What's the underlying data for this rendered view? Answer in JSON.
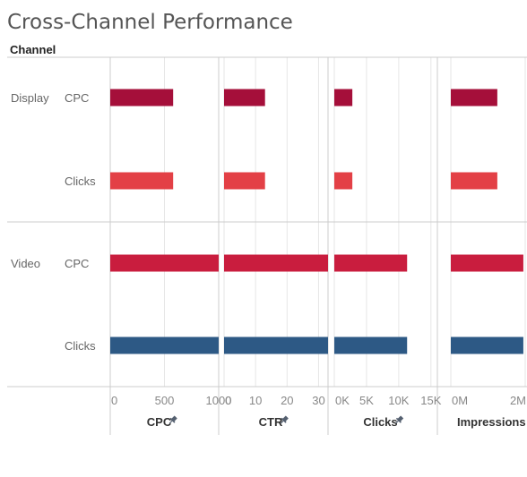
{
  "title": "Cross-Channel Performance",
  "row_header": "Channel",
  "colors": {
    "Display|CPC": "#a50f3a",
    "Display|Clicks": "#e34046",
    "Video|CPC": "#c91d3e",
    "Video|Clicks": "#2d5985",
    "grid": "#e6e6e6",
    "divider": "#cccccc"
  },
  "chart_data": {
    "type": "bar",
    "orientation": "horizontal",
    "title": "Cross-Channel Performance",
    "rows": [
      {
        "channel": "Display",
        "metric": "CPC"
      },
      {
        "channel": "Display",
        "metric": "Clicks"
      },
      {
        "channel": "Video",
        "metric": "CPC"
      },
      {
        "channel": "Video",
        "metric": "Clicks"
      }
    ],
    "channels": [
      "Display",
      "Video"
    ],
    "panels": [
      {
        "measure": "CPC",
        "xlim": [
          0,
          1000
        ],
        "ticks": [
          {
            "v": 0,
            "label": "0"
          },
          {
            "v": 500,
            "label": "500"
          },
          {
            "v": 1000,
            "label": "1000"
          }
        ],
        "values": [
          580,
          580,
          1000,
          1000
        ],
        "pinned": true
      },
      {
        "measure": "CTR",
        "xlim": [
          0,
          33
        ],
        "ticks": [
          {
            "v": 0,
            "label": "0"
          },
          {
            "v": 10,
            "label": "10"
          },
          {
            "v": 20,
            "label": "20"
          },
          {
            "v": 30,
            "label": "30"
          }
        ],
        "values": [
          13,
          13,
          33,
          33
        ],
        "pinned": true
      },
      {
        "measure": "Clicks",
        "xlim": [
          0,
          16000
        ],
        "ticks": [
          {
            "v": 0,
            "label": "0K"
          },
          {
            "v": 5000,
            "label": "5K"
          },
          {
            "v": 10000,
            "label": "10K"
          },
          {
            "v": 15000,
            "label": "15K"
          }
        ],
        "values": [
          2800,
          2800,
          11300,
          11300
        ],
        "pinned": true
      },
      {
        "measure": "Impressions",
        "xlim": [
          0,
          2000000
        ],
        "ticks": [
          {
            "v": 0,
            "label": "0M"
          },
          {
            "v": 2000000,
            "label": "2M"
          }
        ],
        "values": [
          1250000,
          1250000,
          1950000,
          1950000
        ],
        "pinned": false
      }
    ]
  }
}
